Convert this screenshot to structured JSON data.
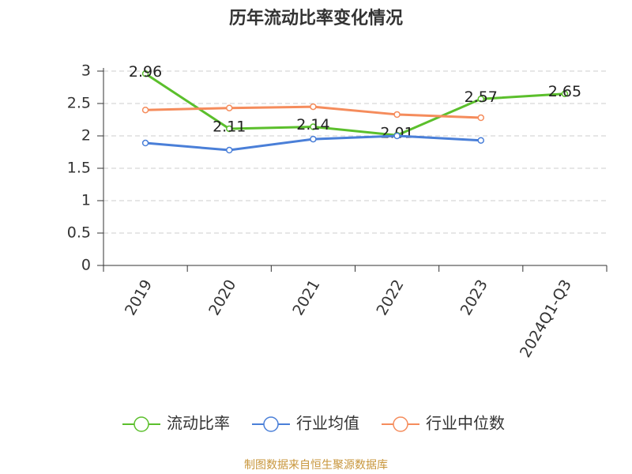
{
  "chart_data": {
    "type": "line",
    "title": "历年流动比率变化情况",
    "categories": [
      "2019",
      "2020",
      "2021",
      "2022",
      "2023",
      "2024Q1-Q3"
    ],
    "series": [
      {
        "name": "流动比率",
        "color": "#5bbf2c",
        "values": [
          2.96,
          2.11,
          2.14,
          2.01,
          2.57,
          2.65
        ],
        "labels": true
      },
      {
        "name": "行业均值",
        "color": "#4a7fd8",
        "values": [
          1.89,
          1.78,
          1.95,
          2.0,
          1.93,
          null
        ]
      },
      {
        "name": "行业中位数",
        "color": "#f58c5c",
        "values": [
          2.4,
          2.43,
          2.45,
          2.33,
          2.28,
          null
        ]
      }
    ],
    "ylim": [
      0,
      3
    ],
    "yticks": [
      0,
      0.5,
      1,
      1.5,
      2,
      2.5,
      3
    ],
    "grid": true,
    "legend": "bottom",
    "source": "制图数据来自恒生聚源数据库"
  }
}
